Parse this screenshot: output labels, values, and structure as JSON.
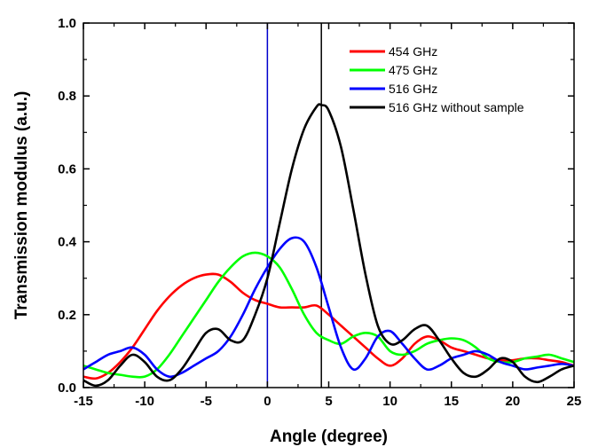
{
  "chart_data": {
    "type": "line",
    "title": "",
    "xlabel": "Angle (degree)",
    "ylabel": "Transmission modulus (a.u.)",
    "xlim": [
      -15,
      25
    ],
    "ylim": [
      0,
      1.0
    ],
    "xticks": [
      -15,
      -10,
      -5,
      0,
      5,
      10,
      15,
      20,
      25
    ],
    "yticks": [
      0.0,
      0.2,
      0.4,
      0.6,
      0.8,
      1.0
    ],
    "ytick_labels": [
      "0.0",
      "0.2",
      "0.4",
      "0.6",
      "0.8",
      "1.0"
    ],
    "legend_position": "top-right",
    "grid": false,
    "vlines": [
      {
        "x": 0,
        "color": "#0000cc"
      },
      {
        "x": 4.4,
        "color": "#000000"
      }
    ],
    "series": [
      {
        "name": "454 GHz",
        "color": "#ff0000",
        "x": [
          -15,
          -14,
          -13,
          -12,
          -11,
          -10,
          -9,
          -8,
          -7,
          -6,
          -5,
          -4,
          -3,
          -2,
          -1,
          0,
          1,
          2,
          3,
          4,
          5,
          6,
          7,
          8,
          9,
          10,
          11,
          12,
          13,
          14,
          15,
          16,
          17,
          18,
          19,
          20,
          21,
          22,
          23,
          24,
          25
        ],
        "y": [
          0.03,
          0.025,
          0.04,
          0.07,
          0.11,
          0.16,
          0.21,
          0.25,
          0.28,
          0.3,
          0.31,
          0.31,
          0.29,
          0.26,
          0.24,
          0.23,
          0.22,
          0.22,
          0.22,
          0.225,
          0.2,
          0.17,
          0.14,
          0.11,
          0.08,
          0.06,
          0.08,
          0.12,
          0.14,
          0.13,
          0.11,
          0.1,
          0.09,
          0.08,
          0.075,
          0.075,
          0.08,
          0.08,
          0.075,
          0.07,
          0.06
        ]
      },
      {
        "name": "475 GHz",
        "color": "#00ff00",
        "x": [
          -15,
          -14,
          -13,
          -12,
          -11,
          -10,
          -9,
          -8,
          -7,
          -6,
          -5,
          -4,
          -3,
          -2,
          -1,
          0,
          1,
          2,
          3,
          4,
          5,
          6,
          7,
          8,
          9,
          10,
          11,
          12,
          13,
          14,
          15,
          16,
          17,
          18,
          19,
          20,
          21,
          22,
          23,
          24,
          25
        ],
        "y": [
          0.06,
          0.05,
          0.04,
          0.035,
          0.03,
          0.03,
          0.05,
          0.09,
          0.14,
          0.19,
          0.24,
          0.29,
          0.33,
          0.36,
          0.37,
          0.36,
          0.33,
          0.27,
          0.2,
          0.15,
          0.13,
          0.12,
          0.14,
          0.15,
          0.14,
          0.1,
          0.09,
          0.1,
          0.12,
          0.13,
          0.135,
          0.13,
          0.11,
          0.08,
          0.07,
          0.07,
          0.08,
          0.085,
          0.09,
          0.08,
          0.07
        ]
      },
      {
        "name": "516 GHz",
        "color": "#0000ff",
        "x": [
          -15,
          -14,
          -13,
          -12,
          -11,
          -10,
          -9,
          -8,
          -7,
          -6,
          -5,
          -4,
          -3,
          -2,
          -1,
          0,
          1,
          2,
          3,
          4,
          5,
          6,
          7,
          8,
          9,
          10,
          11,
          12,
          13,
          14,
          15,
          16,
          17,
          18,
          19,
          20,
          21,
          22,
          23,
          24,
          25
        ],
        "y": [
          0.05,
          0.07,
          0.09,
          0.1,
          0.11,
          0.09,
          0.05,
          0.03,
          0.04,
          0.06,
          0.08,
          0.1,
          0.14,
          0.2,
          0.27,
          0.33,
          0.38,
          0.41,
          0.4,
          0.33,
          0.22,
          0.11,
          0.05,
          0.08,
          0.14,
          0.155,
          0.12,
          0.08,
          0.05,
          0.06,
          0.08,
          0.09,
          0.1,
          0.09,
          0.07,
          0.06,
          0.05,
          0.055,
          0.06,
          0.065,
          0.06
        ]
      },
      {
        "name": "516 GHz without sample",
        "color": "#000000",
        "x": [
          -15,
          -14,
          -13,
          -12,
          -11,
          -10,
          -9,
          -8,
          -7,
          -6,
          -5,
          -4,
          -3,
          -2,
          -1,
          0,
          1,
          2,
          3,
          4,
          4.4,
          5,
          6,
          7,
          8,
          9,
          10,
          11,
          12,
          13,
          14,
          15,
          16,
          17,
          18,
          19,
          20,
          21,
          22,
          23,
          24,
          25
        ],
        "y": [
          0.02,
          0.005,
          0.02,
          0.06,
          0.09,
          0.07,
          0.03,
          0.02,
          0.05,
          0.1,
          0.15,
          0.16,
          0.13,
          0.13,
          0.2,
          0.3,
          0.45,
          0.6,
          0.71,
          0.77,
          0.775,
          0.76,
          0.66,
          0.49,
          0.31,
          0.17,
          0.12,
          0.13,
          0.16,
          0.17,
          0.13,
          0.08,
          0.04,
          0.03,
          0.05,
          0.08,
          0.07,
          0.03,
          0.015,
          0.03,
          0.05,
          0.06
        ]
      }
    ]
  }
}
